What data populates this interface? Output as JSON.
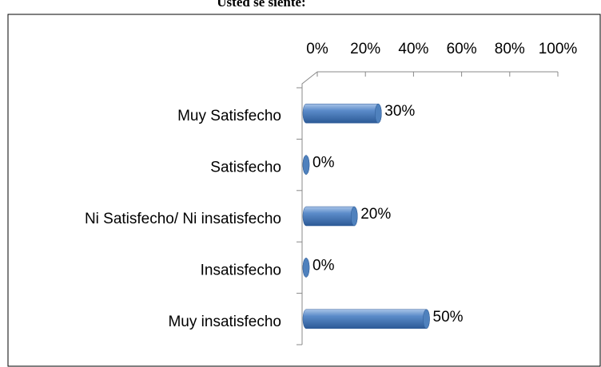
{
  "chart_data": {
    "type": "bar",
    "orientation": "horizontal",
    "title": "Usted se siente:",
    "categories": [
      "Muy Satisfecho",
      "Satisfecho",
      "Ni Satisfecho/ Ni insatisfecho",
      "Insatisfecho",
      "Muy insatisfecho"
    ],
    "values": [
      30,
      0,
      20,
      0,
      50
    ],
    "value_labels": [
      "30%",
      "0%",
      "20%",
      "0%",
      "50%"
    ],
    "color": "#4f81bd",
    "xlim": [
      0,
      100
    ],
    "xticks": [
      {
        "value": 0,
        "label": "0%"
      },
      {
        "value": 20,
        "label": "20%"
      },
      {
        "value": 40,
        "label": "40%"
      },
      {
        "value": 60,
        "label": "60%"
      },
      {
        "value": 80,
        "label": "80%"
      },
      {
        "value": 100,
        "label": "100%"
      }
    ]
  }
}
